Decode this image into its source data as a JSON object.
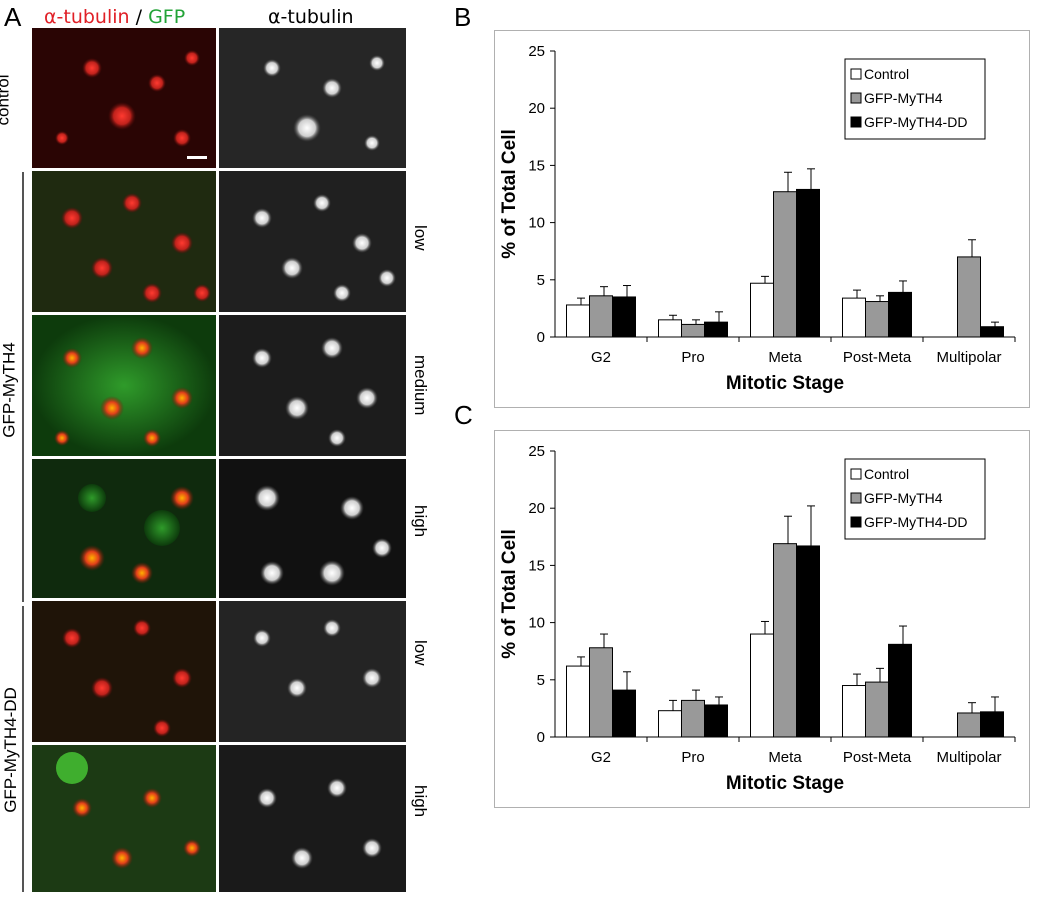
{
  "figure": {
    "panel_a_label": "A",
    "panel_b_label": "B",
    "panel_c_label": "C",
    "col_header_left_1": "α-tubulin",
    "col_header_left_sep": " / ",
    "col_header_left_2": "GFP",
    "col_header_right": "α-tubulin",
    "row_labels": {
      "control": "control",
      "mytH4": "GFP-MyTH4",
      "mytH4dd": "GFP-MyTH4-DD"
    },
    "level_labels": [
      "low",
      "medium",
      "high",
      "low",
      "high"
    ],
    "colors": {
      "red_channel": "#e01f26",
      "green_channel": "#23a337"
    }
  },
  "chart_data": [
    {
      "type": "bar",
      "panel": "B",
      "categories": [
        "G2",
        "Pro",
        "Meta",
        "Post-Meta",
        "Multipolar"
      ],
      "series": [
        {
          "name": "Control",
          "color": "#ffffff",
          "values": [
            2.8,
            1.5,
            4.7,
            3.4,
            0
          ],
          "errors": [
            0.6,
            0.4,
            0.6,
            0.7,
            0
          ]
        },
        {
          "name": "GFP-MyTH4",
          "color": "#999999",
          "values": [
            3.6,
            1.1,
            12.7,
            3.1,
            7.0
          ],
          "errors": [
            0.8,
            0.4,
            1.7,
            0.5,
            1.5
          ]
        },
        {
          "name": "GFP-MyTH4-DD",
          "color": "#000000",
          "values": [
            3.5,
            1.3,
            12.9,
            3.9,
            0.9
          ],
          "errors": [
            1.0,
            0.9,
            1.8,
            1.0,
            0.4
          ]
        }
      ],
      "yticks": [
        0,
        5,
        10,
        15,
        20,
        25
      ],
      "ylim": [
        0,
        25
      ],
      "xlabel": "Mitotic Stage",
      "ylabel": "% of Total Cell",
      "legend": "top-right",
      "grid": false
    },
    {
      "type": "bar",
      "panel": "C",
      "categories": [
        "G2",
        "Pro",
        "Meta",
        "Post-Meta",
        "Multipolar"
      ],
      "series": [
        {
          "name": "Control",
          "color": "#ffffff",
          "values": [
            6.2,
            2.3,
            9.0,
            4.5,
            0
          ],
          "errors": [
            0.8,
            0.9,
            1.1,
            1.0,
            0
          ]
        },
        {
          "name": "GFP-MyTH4",
          "color": "#999999",
          "values": [
            7.8,
            3.2,
            16.9,
            4.8,
            2.1
          ],
          "errors": [
            1.2,
            0.9,
            2.4,
            1.2,
            0.9
          ]
        },
        {
          "name": "GFP-MyTH4-DD",
          "color": "#000000",
          "values": [
            4.1,
            2.8,
            16.7,
            8.1,
            2.2
          ],
          "errors": [
            1.6,
            0.7,
            3.5,
            1.6,
            1.3
          ]
        }
      ],
      "yticks": [
        0,
        5,
        10,
        15,
        20,
        25
      ],
      "ylim": [
        0,
        25
      ],
      "xlabel": "Mitotic Stage",
      "ylabel": "% of Total Cell",
      "legend": "top-right",
      "grid": false
    }
  ]
}
